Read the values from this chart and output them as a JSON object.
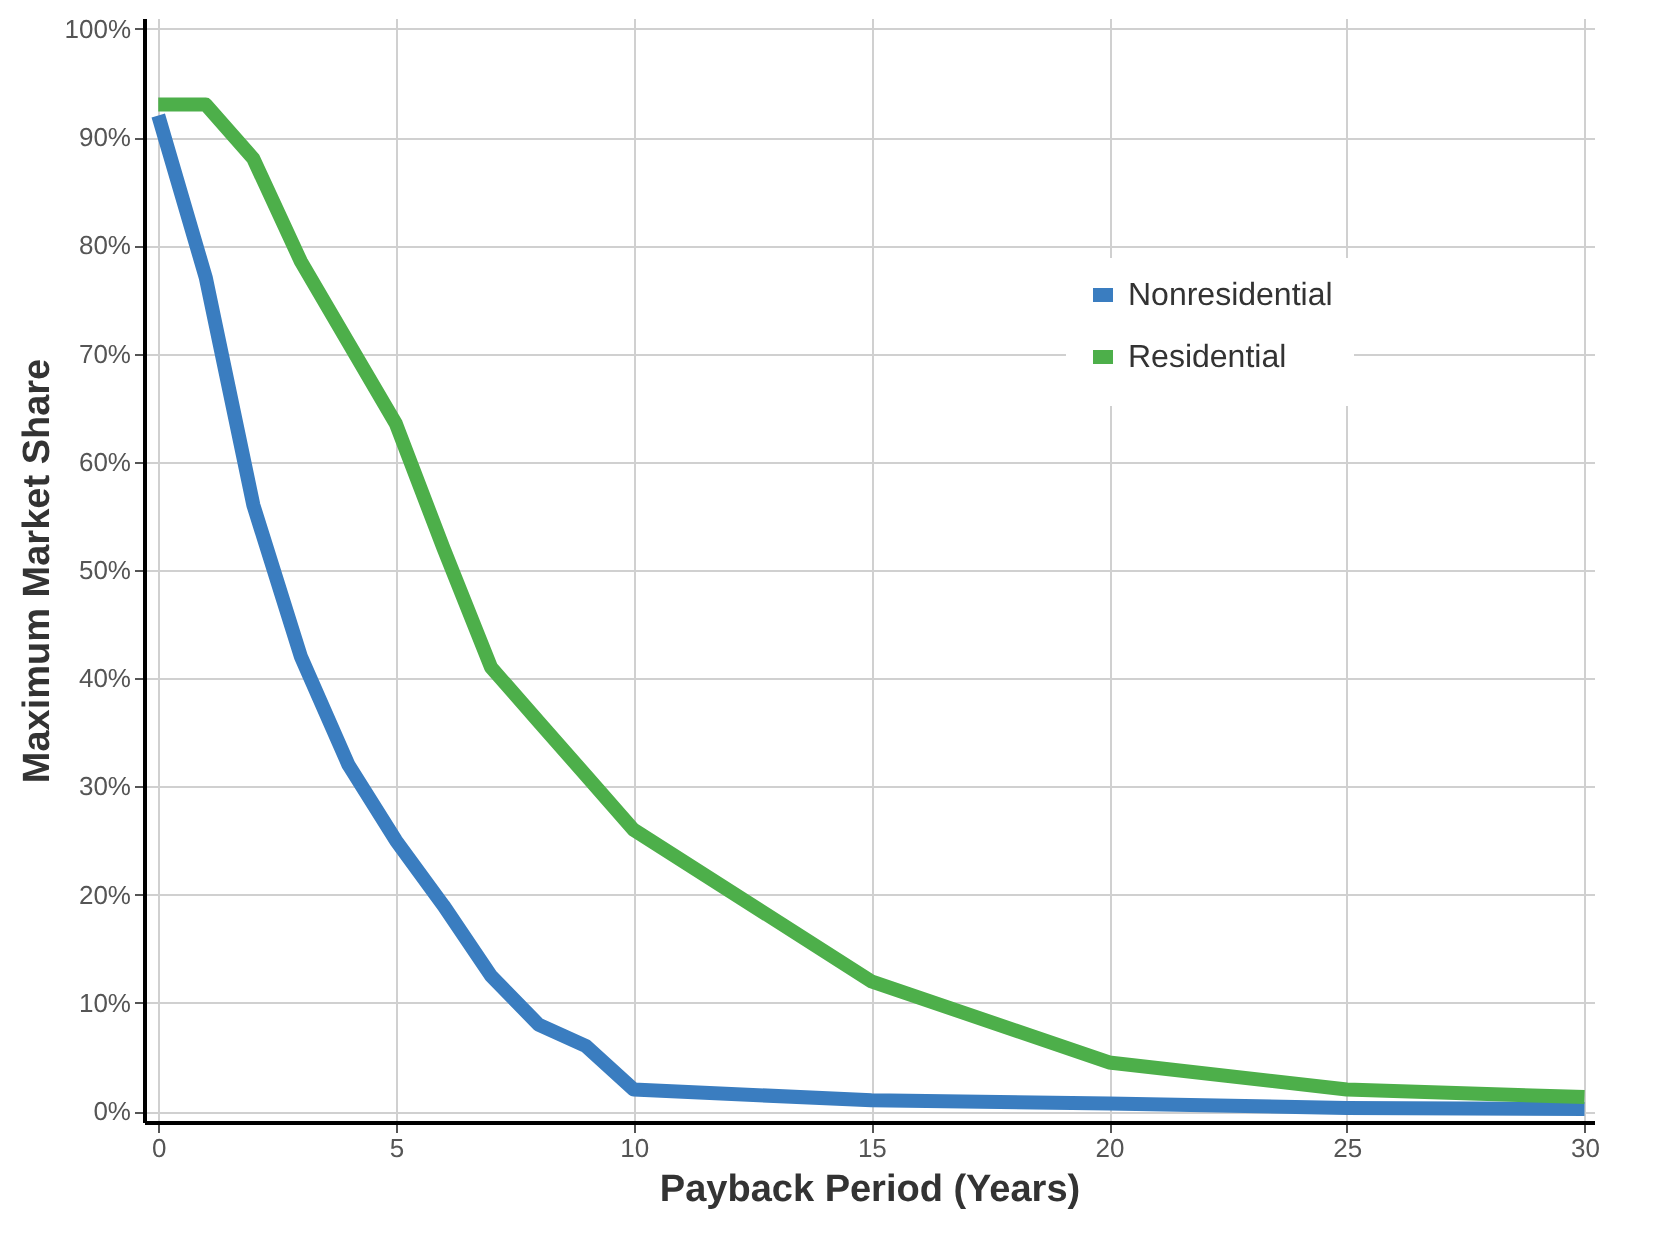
{
  "chart_data": {
    "type": "line",
    "xlabel": "Payback Period (Years)",
    "ylabel": "Maximum Market Share",
    "x": [
      0,
      1,
      2,
      3,
      4,
      5,
      6,
      7,
      8,
      9,
      10,
      15,
      20,
      25,
      30
    ],
    "series": [
      {
        "name": "Nonresidential",
        "color": "#3a7dc0",
        "values": [
          92,
          77,
          56,
          42,
          32,
          25,
          19,
          12.5,
          8,
          6,
          2,
          1,
          0.7,
          0.3,
          0.2
        ]
      },
      {
        "name": "Residential",
        "color": "#4daf4a",
        "values": [
          93,
          93,
          88,
          78.5,
          71,
          63.5,
          52,
          41,
          36,
          31,
          26,
          12,
          4.5,
          2,
          1.3
        ]
      }
    ],
    "xlim": [
      -0.3,
      30.2
    ],
    "xticks": [
      0,
      5,
      10,
      15,
      20,
      25,
      30
    ],
    "ylim": [
      -1,
      101
    ],
    "yticks": [
      {
        "value": 0,
        "label": "0%"
      },
      {
        "value": 10,
        "label": "10%"
      },
      {
        "value": 20,
        "label": "20%"
      },
      {
        "value": 30,
        "label": "30%"
      },
      {
        "value": 40,
        "label": "40%"
      },
      {
        "value": 50,
        "label": "50%"
      },
      {
        "value": 60,
        "label": "60%"
      },
      {
        "value": 70,
        "label": "70%"
      },
      {
        "value": 80,
        "label": "80%"
      },
      {
        "value": 90,
        "label": "90%"
      },
      {
        "value": 100,
        "label": "100%"
      }
    ],
    "grid": true,
    "legend": "top right",
    "marker": "none",
    "line_style": "solid"
  }
}
